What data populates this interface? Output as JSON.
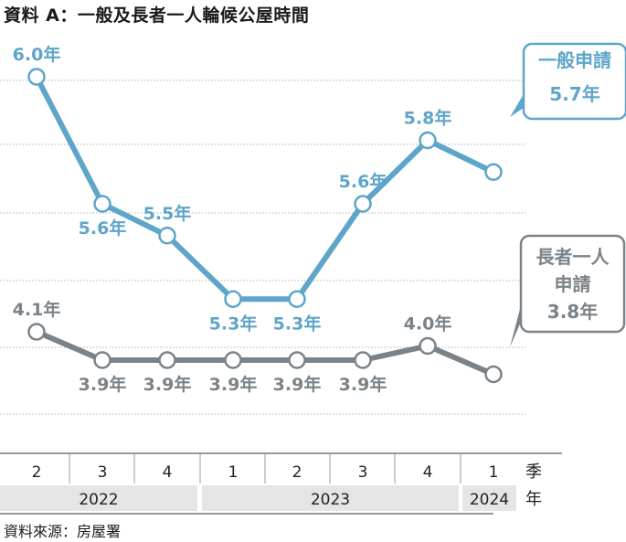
{
  "title": "資料 A：一般及長者一人輪候公屋時間",
  "source": "資料來源：房屋署",
  "chart_data": {
    "type": "line",
    "categories": [
      "2",
      "3",
      "4",
      "1",
      "2",
      "3",
      "4",
      "1"
    ],
    "years": [
      {
        "label": "2022",
        "span": [
          0,
          2
        ]
      },
      {
        "label": "2023",
        "span": [
          3,
          6
        ]
      },
      {
        "label": "2024",
        "span": [
          7,
          7
        ]
      }
    ],
    "x_unit_quarter": "季",
    "x_unit_year": "年",
    "grid": true,
    "series": [
      {
        "name": "一般申請",
        "values": [
          6.0,
          5.6,
          5.5,
          5.3,
          5.3,
          5.6,
          5.8,
          5.7
        ],
        "point_labels": [
          "6.0年",
          "5.6年",
          "5.5年",
          "5.3年",
          "5.3年",
          "5.6年",
          "5.8年",
          ""
        ],
        "callout": [
          "一般申請",
          "5.7年"
        ],
        "color": "#5ea5c9"
      },
      {
        "name": "長者一人申請",
        "values": [
          4.1,
          3.9,
          3.9,
          3.9,
          3.9,
          3.9,
          4.0,
          3.8
        ],
        "point_labels": [
          "4.1年",
          "3.9年",
          "3.9年",
          "3.9年",
          "3.9年",
          "3.9年",
          "4.0年",
          ""
        ],
        "callout": [
          "長者一人",
          "申請",
          "3.8年"
        ],
        "color": "#7a8389"
      }
    ]
  }
}
